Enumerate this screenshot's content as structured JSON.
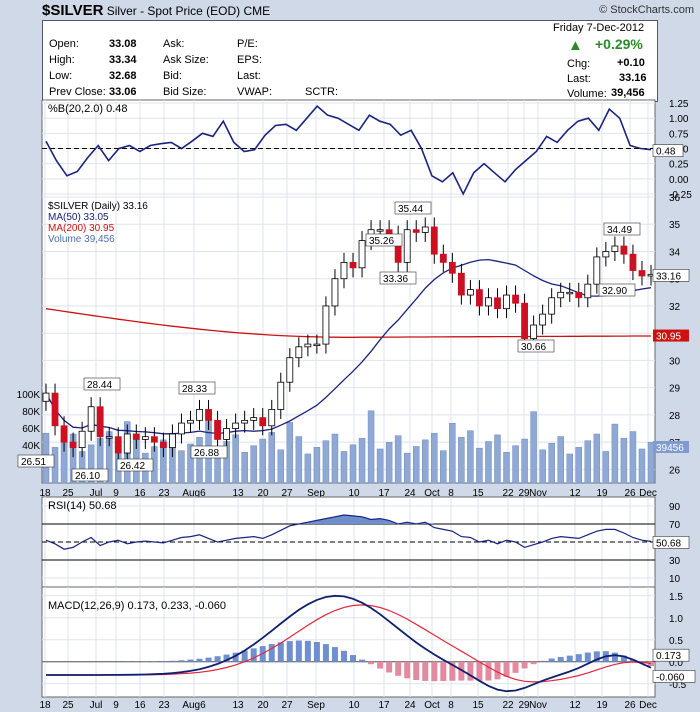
{
  "header": {
    "symbol": "$SILVER",
    "name": "Silver - Spot Price (EOD)",
    "exchange": "CME",
    "credit": "© StockCharts.com"
  },
  "quote": {
    "date": "Friday  7-Dec-2012",
    "pct_change": "+0.29%",
    "open_label": "Open:",
    "open": "33.08",
    "high_label": "High:",
    "high": "33.34",
    "low_label": "Low:",
    "low": "32.68",
    "prev_label": "Prev Close:",
    "prev_close": "33.06",
    "ask_label": "Ask:",
    "ask_size_label": "Ask Size:",
    "bid_label": "Bid:",
    "bid_size_label": "Bid Size:",
    "pe_label": "P/E:",
    "eps_label": "EPS:",
    "last_label": "Last:",
    "vwap_label": "VWAP:",
    "sctr_label": "SCTR:",
    "chg_label": "Chg:",
    "chg": "+0.10",
    "last_label2": "Last:",
    "last": "33.16",
    "volume_label": "Volume:",
    "volume": "39,456",
    "up_color": "#2a8a2a"
  },
  "chart_data": [
    {
      "type": "line",
      "panel": "%B",
      "legend": "%B(20,2.0) 0.48",
      "yticks": [
        "1.25",
        "1.00",
        "0.75",
        "0.50",
        "0.25",
        "0.00",
        "-0.25"
      ],
      "ylim": [
        -0.3,
        1.3
      ],
      "reference_line": 0.5,
      "last_label": "0.48",
      "values": [
        0.62,
        0.3,
        0.05,
        0.12,
        0.35,
        0.55,
        0.3,
        0.5,
        0.55,
        0.45,
        0.55,
        0.58,
        0.6,
        0.5,
        0.62,
        0.75,
        0.7,
        0.95,
        0.6,
        0.45,
        0.48,
        0.72,
        0.88,
        0.9,
        0.8,
        1.0,
        1.2,
        1.05,
        1.0,
        0.9,
        0.8,
        1.05,
        0.95,
        0.9,
        0.72,
        0.8,
        0.5,
        0.05,
        -0.05,
        0.1,
        -0.25,
        0.1,
        0.25,
        0.1,
        -0.05,
        0.15,
        0.3,
        0.45,
        0.7,
        0.6,
        0.8,
        0.95,
        1.0,
        0.8,
        1.15,
        1.0,
        0.55,
        0.5,
        0.48
      ]
    },
    {
      "type": "candlestick",
      "panel": "price",
      "legend": [
        "$SILVER (Daily) 33.16",
        "MA(50) 33.05",
        "MA(200) 30.95",
        "Volume 39,456"
      ],
      "series_colors": {
        "price": "#000000",
        "ma50": "#1a237e",
        "ma200": "#cc1111",
        "volume": "#4a6fb0"
      },
      "yticks": [
        "36",
        "35",
        "34",
        "33",
        "32",
        "31",
        "30",
        "29",
        "28",
        "27",
        "26"
      ],
      "ylim": [
        25.5,
        36.0
      ],
      "volume_ticks": [
        "100K",
        "80K",
        "60K",
        "40K",
        "20K"
      ],
      "xticks": [
        "18",
        "25",
        "Jul",
        "9",
        "16",
        "23",
        "Aug6",
        "13",
        "20",
        "27",
        "Sep",
        "10",
        "17",
        "24",
        "Oct",
        "8",
        "15",
        "22",
        "29",
        "Nov",
        "12",
        "19",
        "26",
        "Dec"
      ],
      "close": [
        28.8,
        27.6,
        27.0,
        26.8,
        27.4,
        28.3,
        27.2,
        27.2,
        26.6,
        27.3,
        27.1,
        27.2,
        27.0,
        26.8,
        27.3,
        27.7,
        27.8,
        28.2,
        27.8,
        27.1,
        27.5,
        27.7,
        27.8,
        27.9,
        27.6,
        28.2,
        29.2,
        30.1,
        30.5,
        30.6,
        30.6,
        32.0,
        33.0,
        33.6,
        33.4,
        34.4,
        34.8,
        34.8,
        34.6,
        33.6,
        34.8,
        34.7,
        34.9,
        33.9,
        33.6,
        33.2,
        32.4,
        32.6,
        32.0,
        32.3,
        31.9,
        32.4,
        32.1,
        30.8,
        31.3,
        31.7,
        32.3,
        32.5,
        32.5,
        32.3,
        32.8,
        33.8,
        34.0,
        34.2,
        33.9,
        33.3,
        33.1,
        33.16
      ],
      "ma50_end": 33.05,
      "ma200_end": 30.95,
      "price_labels": [
        "28.44",
        "28.33",
        "26.51",
        "26.10",
        "26.42",
        "26.88",
        "35.26",
        "35.44",
        "33.36",
        "30.66",
        "34.49",
        "32.90"
      ],
      "last_price_label": "33.16",
      "ma200_label": "30.95",
      "volume_last_label": "39456"
    },
    {
      "type": "line",
      "panel": "RSI",
      "legend": "RSI(14) 50.68",
      "yticks": [
        "90",
        "70",
        "50",
        "30",
        "10"
      ],
      "ylim": [
        0,
        100
      ],
      "last_label": "50.68",
      "values": [
        52,
        48,
        42,
        44,
        50,
        55,
        46,
        50,
        52,
        48,
        50,
        51,
        50,
        49,
        52,
        55,
        56,
        58,
        54,
        50,
        52,
        54,
        55,
        56,
        54,
        58,
        63,
        68,
        70,
        72,
        74,
        76,
        78,
        80,
        79,
        78,
        75,
        76,
        74,
        70,
        72,
        70,
        72,
        66,
        64,
        62,
        56,
        55,
        50,
        52,
        48,
        52,
        50,
        44,
        47,
        50,
        54,
        56,
        55,
        54,
        58,
        62,
        64,
        64,
        60,
        55,
        52,
        50.68
      ]
    },
    {
      "type": "line",
      "panel": "MACD",
      "legend": "MACD(12,26,9) 0.173, 0.233, -0.060",
      "series": [
        {
          "name": "MACD",
          "last": 0.173
        },
        {
          "name": "Signal",
          "last": 0.233
        },
        {
          "name": "Histogram",
          "last": -0.06
        }
      ],
      "yticks": [
        "1.5",
        "1.0",
        "0.5",
        "0.0",
        "-0.5"
      ],
      "ylim": [
        -0.8,
        1.7
      ],
      "last_labels": [
        "0.173",
        "-0.060"
      ]
    }
  ]
}
